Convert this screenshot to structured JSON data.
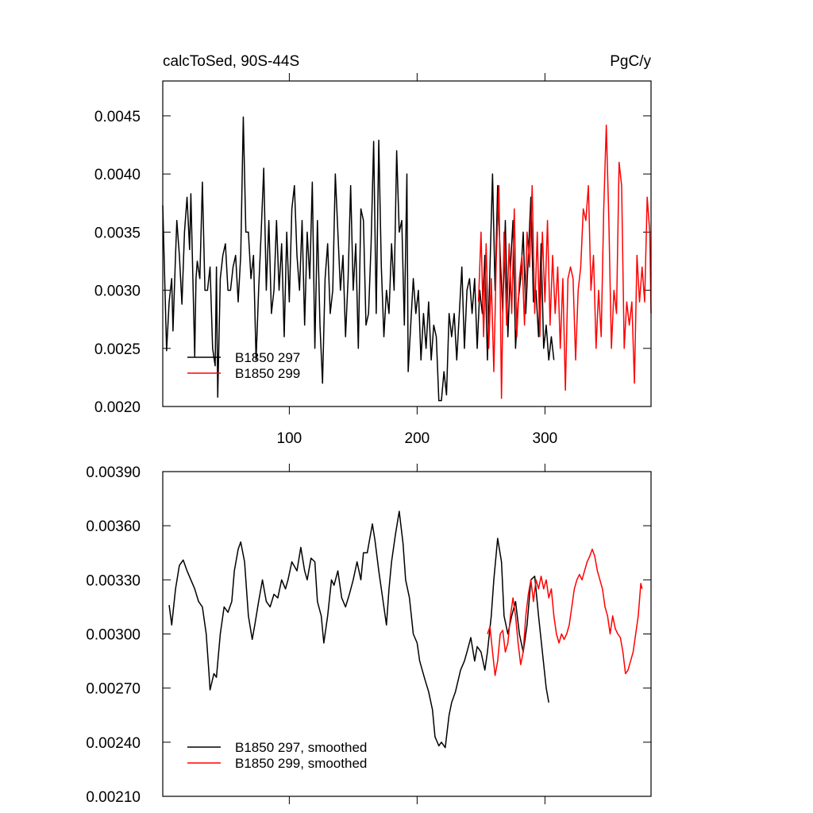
{
  "chart_data": [
    {
      "type": "line",
      "title": "calcToSed, 90S-44S",
      "units": "PgC/y",
      "xlim": [
        1,
        383
      ],
      "xticks": [
        100,
        200,
        300
      ],
      "show_xtick_labels": true,
      "ylim": [
        0.002,
        0.0048
      ],
      "yticks": [
        {
          "value": 0.002,
          "label": "0.0020"
        },
        0.0025,
        {
          "value": 0.003,
          "label": "0.0030"
        },
        0.0035,
        {
          "value": 0.004,
          "label": "0.0040"
        },
        0.0045
      ],
      "legend": "lower left",
      "series": [
        {
          "name": "B1850 297",
          "color": "#000000",
          "x": [
            1,
            4,
            6,
            8,
            9,
            11,
            12,
            14,
            16,
            18,
            20,
            22,
            23,
            26,
            27,
            28,
            30,
            32,
            34,
            36,
            38,
            40,
            42,
            43,
            44,
            46,
            48,
            50,
            52,
            54,
            56,
            58,
            60,
            62,
            64,
            66,
            68,
            70,
            72,
            74,
            76,
            78,
            80,
            82,
            84,
            86,
            88,
            90,
            92,
            94,
            96,
            98,
            100,
            102,
            104,
            106,
            108,
            110,
            112,
            114,
            116,
            118,
            120,
            122,
            124,
            126,
            128,
            130,
            132,
            134,
            136,
            138,
            140,
            142,
            144,
            146,
            148,
            150,
            152,
            154,
            156,
            158,
            160,
            162,
            164,
            166,
            168,
            170,
            172,
            174,
            176,
            178,
            180,
            182,
            184,
            186,
            188,
            190,
            192,
            193,
            195,
            197,
            199,
            201,
            203,
            205,
            207,
            209,
            211,
            213,
            215,
            217,
            219,
            221,
            223,
            225,
            227,
            229,
            231,
            233,
            235,
            237,
            239,
            241,
            243,
            245,
            247,
            249,
            251,
            253,
            255,
            257,
            259,
            261,
            263,
            265,
            267,
            269,
            271,
            273,
            275,
            277,
            279,
            281,
            283,
            285,
            287,
            289,
            291,
            293,
            295,
            297,
            299,
            301,
            303,
            305,
            307
          ],
          "values": [
            0.00373,
            0.00248,
            0.0029,
            0.0031,
            0.00265,
            0.0033,
            0.0036,
            0.0033,
            0.00288,
            0.0035,
            0.0038,
            0.00335,
            0.00383,
            0.00243,
            0.0031,
            0.00325,
            0.0031,
            0.00393,
            0.003,
            0.003,
            0.0032,
            0.0025,
            0.00235,
            0.0032,
            0.00208,
            0.0031,
            0.0033,
            0.0034,
            0.003,
            0.003,
            0.0032,
            0.0033,
            0.0029,
            0.0033,
            0.00449,
            0.0035,
            0.0035,
            0.0031,
            0.0033,
            0.0024,
            0.003,
            0.0035,
            0.00405,
            0.003,
            0.0036,
            0.0028,
            0.003,
            0.0036,
            0.003,
            0.0034,
            0.0026,
            0.0035,
            0.0029,
            0.0037,
            0.0039,
            0.0033,
            0.003,
            0.0036,
            0.0027,
            0.0035,
            0.0031,
            0.00393,
            0.0025,
            0.0036,
            0.0027,
            0.0022,
            0.0031,
            0.0034,
            0.0028,
            0.003,
            0.004,
            0.0035,
            0.003,
            0.0033,
            0.0026,
            0.0031,
            0.0039,
            0.003,
            0.0034,
            0.0025,
            0.0037,
            0.0036,
            0.0027,
            0.0028,
            0.0034,
            0.00428,
            0.0028,
            0.00429,
            0.0032,
            0.0026,
            0.003,
            0.0028,
            0.0034,
            0.003,
            0.0042,
            0.0035,
            0.0036,
            0.0027,
            0.004,
            0.0023,
            0.0027,
            0.0031,
            0.0028,
            0.003,
            0.0024,
            0.0028,
            0.0025,
            0.0029,
            0.0024,
            0.0027,
            0.0026,
            0.00205,
            0.00205,
            0.0023,
            0.0021,
            0.0028,
            0.0026,
            0.0028,
            0.0024,
            0.0028,
            0.0032,
            0.0025,
            0.003,
            0.0031,
            0.0028,
            0.0031,
            0.0025,
            0.003,
            0.0028,
            0.0033,
            0.0024,
            0.0032,
            0.004,
            0.003,
            0.0039,
            0.0033,
            0.0028,
            0.0036,
            0.0026,
            0.0032,
            0.0036,
            0.0025,
            0.0029,
            0.0031,
            0.0035,
            0.0028,
            0.0033,
            0.0038,
            0.0029,
            0.003,
            0.0026,
            0.0034,
            0.0025,
            0.0027,
            0.0024,
            0.0026,
            0.0024
          ]
        },
        {
          "name": "B1850 299",
          "color": "#ff0000",
          "x": [
            248,
            250,
            252,
            254,
            256,
            258,
            260,
            262,
            264,
            266,
            268,
            270,
            272,
            274,
            276,
            278,
            280,
            282,
            284,
            286,
            288,
            290,
            292,
            294,
            296,
            298,
            300,
            302,
            304,
            306,
            308,
            310,
            312,
            314,
            316,
            318,
            320,
            322,
            324,
            326,
            328,
            330,
            332,
            334,
            336,
            338,
            340,
            342,
            344,
            346,
            348,
            350,
            352,
            354,
            356,
            358,
            360,
            362,
            364,
            366,
            368,
            370,
            372,
            374,
            376,
            378,
            380,
            382,
            383
          ],
          "values": [
            0.0029,
            0.0035,
            0.0026,
            0.0034,
            0.0025,
            0.0031,
            0.0023,
            0.0033,
            0.0039,
            0.00207,
            0.0035,
            0.0027,
            0.0034,
            0.0028,
            0.0037,
            0.0026,
            0.0031,
            0.0033,
            0.0027,
            0.0035,
            0.0032,
            0.0039,
            0.0028,
            0.0035,
            0.0026,
            0.0035,
            0.0029,
            0.0036,
            0.0027,
            0.0033,
            0.0028,
            0.0032,
            0.0025,
            0.0031,
            0.00214,
            0.0031,
            0.0032,
            0.0031,
            0.0024,
            0.003,
            0.0032,
            0.0037,
            0.0036,
            0.0039,
            0.003,
            0.0033,
            0.0025,
            0.003,
            0.0026,
            0.0037,
            0.00442,
            0.0036,
            0.0025,
            0.003,
            0.0028,
            0.0041,
            0.0039,
            0.0025,
            0.0029,
            0.0027,
            0.0029,
            0.0022,
            0.0033,
            0.0029,
            0.0032,
            0.0029,
            0.0038,
            0.0035,
            0.0028
          ]
        }
      ]
    },
    {
      "type": "line",
      "xlim": [
        1,
        383
      ],
      "xticks": [
        100,
        200,
        300
      ],
      "show_xtick_labels": false,
      "ylim": [
        0.0021,
        0.0039
      ],
      "yticks": [
        {
          "value": 0.0021,
          "label": "0.00210"
        },
        {
          "value": 0.0024,
          "label": "0.00240"
        },
        {
          "value": 0.0027,
          "label": "0.00270"
        },
        {
          "value": 0.003,
          "label": "0.00300"
        },
        {
          "value": 0.0033,
          "label": "0.00330"
        },
        {
          "value": 0.0036,
          "label": "0.00360"
        },
        {
          "value": 0.0039,
          "label": "0.00390"
        }
      ],
      "legend": "lower left",
      "series": [
        {
          "name": "B1850 297, smoothed",
          "color": "#000000",
          "x": [
            6,
            8,
            11,
            14,
            17,
            20,
            23,
            26,
            29,
            32,
            35,
            37,
            38,
            41,
            43,
            46,
            49,
            52,
            55,
            57,
            60,
            62,
            65,
            68,
            71,
            73,
            76,
            79,
            82,
            85,
            88,
            91,
            94,
            97,
            99,
            102,
            106,
            109,
            112,
            114,
            117,
            120,
            122,
            125,
            127,
            130,
            133,
            135,
            138,
            141,
            144,
            147,
            150,
            153,
            156,
            158,
            161,
            165,
            167,
            170,
            173,
            176,
            178,
            180,
            183,
            186,
            189,
            191,
            194,
            197,
            200,
            202,
            206,
            209,
            212,
            214,
            217,
            219,
            222,
            225,
            227,
            230,
            234,
            237,
            239,
            242,
            245,
            247,
            250,
            253,
            255,
            258,
            260,
            263,
            266,
            268,
            271,
            274,
            277,
            280,
            283,
            286,
            289,
            292,
            295,
            298,
            301,
            303
          ],
          "values": [
            0.00316,
            0.00305,
            0.00325,
            0.00338,
            0.00341,
            0.00335,
            0.0033,
            0.00325,
            0.00318,
            0.00315,
            0.003,
            0.0028,
            0.00269,
            0.00278,
            0.00276,
            0.003,
            0.00315,
            0.00312,
            0.00318,
            0.00335,
            0.00347,
            0.00351,
            0.0034,
            0.0031,
            0.00297,
            0.00305,
            0.00318,
            0.0033,
            0.00318,
            0.00315,
            0.00322,
            0.0032,
            0.0033,
            0.00325,
            0.0033,
            0.0034,
            0.00335,
            0.00348,
            0.00335,
            0.0033,
            0.00342,
            0.0034,
            0.00318,
            0.0031,
            0.00295,
            0.0031,
            0.0033,
            0.00327,
            0.00335,
            0.0032,
            0.00315,
            0.00322,
            0.0033,
            0.0034,
            0.0033,
            0.00345,
            0.00345,
            0.00361,
            0.00352,
            0.00335,
            0.0032,
            0.00305,
            0.00325,
            0.0034,
            0.00355,
            0.00368,
            0.0035,
            0.0033,
            0.0032,
            0.003,
            0.00295,
            0.00285,
            0.00275,
            0.00268,
            0.00258,
            0.00243,
            0.00238,
            0.0024,
            0.00237,
            0.00255,
            0.00262,
            0.00268,
            0.0028,
            0.00285,
            0.0029,
            0.00298,
            0.00285,
            0.00293,
            0.0029,
            0.0028,
            0.0029,
            0.0031,
            0.0033,
            0.00353,
            0.0034,
            0.0031,
            0.003,
            0.0031,
            0.00318,
            0.003,
            0.0029,
            0.00305,
            0.0033,
            0.00332,
            0.0031,
            0.0029,
            0.0027,
            0.00262
          ]
        },
        {
          "name": "B1850 299, smoothed",
          "color": "#ff0000",
          "x": [
            255,
            257,
            259,
            261,
            263,
            265,
            267,
            269,
            271,
            273,
            275,
            277,
            279,
            281,
            283,
            285,
            287,
            289,
            291,
            293,
            295,
            297,
            299,
            301,
            303,
            305,
            307,
            309,
            311,
            313,
            315,
            317,
            319,
            321,
            323,
            325,
            327,
            329,
            331,
            333,
            335,
            337,
            339,
            341,
            343,
            345,
            347,
            349,
            351,
            353,
            355,
            357,
            359,
            361,
            363,
            365,
            367,
            369,
            371,
            373,
            375,
            376
          ],
          "values": [
            0.003,
            0.00304,
            0.0029,
            0.00277,
            0.00285,
            0.003,
            0.00302,
            0.0029,
            0.00295,
            0.0031,
            0.0032,
            0.0031,
            0.00295,
            0.00283,
            0.0029,
            0.0031,
            0.00322,
            0.0033,
            0.00318,
            0.0033,
            0.00325,
            0.00332,
            0.00325,
            0.0033,
            0.0032,
            0.00325,
            0.0031,
            0.003,
            0.00295,
            0.003,
            0.00297,
            0.003,
            0.00305,
            0.00315,
            0.00325,
            0.0033,
            0.00333,
            0.0033,
            0.00335,
            0.0034,
            0.00343,
            0.00347,
            0.00343,
            0.00335,
            0.0033,
            0.00325,
            0.00315,
            0.0031,
            0.003,
            0.0031,
            0.00303,
            0.003,
            0.00298,
            0.0029,
            0.00278,
            0.0028,
            0.00285,
            0.0029,
            0.003,
            0.0031,
            0.00328,
            0.00325
          ]
        }
      ]
    }
  ]
}
